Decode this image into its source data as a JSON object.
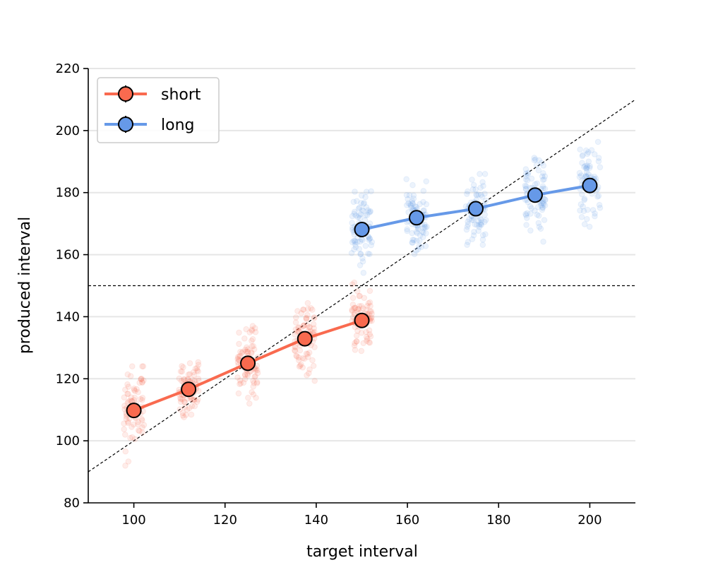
{
  "chart_data": {
    "type": "line",
    "title": "",
    "xlabel": "target interval",
    "ylabel": "produced interval",
    "xlim": [
      90,
      210
    ],
    "ylim": [
      80,
      220
    ],
    "xticks": [
      100,
      120,
      140,
      160,
      180,
      200
    ],
    "yticks": [
      80,
      100,
      120,
      140,
      160,
      180,
      200,
      220
    ],
    "grid": "horizontal",
    "legend_position": "top-left",
    "reference_lines": [
      {
        "kind": "identity",
        "style": "dashed",
        "color": "#000000"
      },
      {
        "kind": "horizontal",
        "y": 150,
        "style": "dashed",
        "color": "#000000"
      }
    ],
    "series": [
      {
        "name": "short",
        "color": "#f96a4f",
        "x": [
          100,
          112,
          125,
          137.5,
          150
        ],
        "y": [
          109.8,
          116.6,
          125.0,
          132.9,
          138.8
        ],
        "scatter_spread": [
          [
            92,
            124
          ],
          [
            107,
            127
          ],
          [
            112,
            137
          ],
          [
            117,
            145.5
          ],
          [
            126,
            151
          ]
        ]
      },
      {
        "name": "long",
        "color": "#6699e8",
        "x": [
          150,
          162,
          175,
          188,
          200
        ],
        "y": [
          168.1,
          171.9,
          174.8,
          179.2,
          182.3
        ],
        "scatter_spread": [
          [
            153,
            183
          ],
          [
            159,
            186
          ],
          [
            162,
            186
          ],
          [
            163.5,
            193
          ],
          [
            169,
            201
          ]
        ]
      }
    ]
  }
}
